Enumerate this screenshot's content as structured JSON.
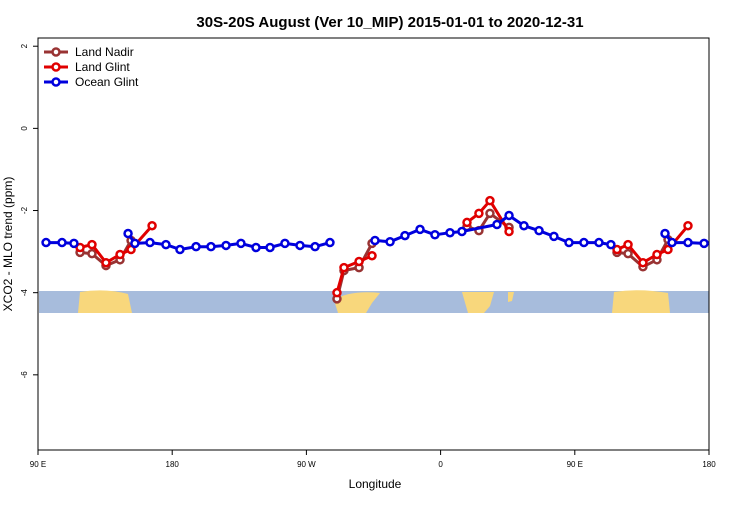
{
  "chart_data": {
    "type": "line",
    "title": "30S-20S August (Ver 10_MIP)   2015-01-01 to 2020-12-31",
    "x_label": "Longitude",
    "y_label": "XCO2 - MLO trend (ppm)",
    "xlim": [
      90,
      540
    ],
    "ylim": [
      -7.83,
      2.2
    ],
    "xticks": [
      {
        "value": 90,
        "label": "90 E"
      },
      {
        "value": 180,
        "label": "180"
      },
      {
        "value": 270,
        "label": "90 W"
      },
      {
        "value": 360,
        "label": "0"
      },
      {
        "value": 450,
        "label": "90 E"
      },
      {
        "value": 540,
        "label": "180"
      }
    ],
    "yticks": [
      2,
      0,
      -2,
      -4,
      -6
    ],
    "legend": "top-left",
    "series": [
      {
        "name": "Land Nadir",
        "color": "#993333",
        "x": [
          118.2,
          126.2,
          135.6,
          145.0,
          152.4,
          null,
          290.5,
          295.2,
          305.3,
          314.0,
          null,
          377.7,
          385.7,
          393.1,
          405.9,
          null,
          478.3,
          485.7,
          495.7,
          505.1,
          512.5
        ],
        "values": [
          -3.02,
          -3.05,
          -3.34,
          -3.2,
          -2.73,
          null,
          -4.15,
          -3.46,
          -3.39,
          -2.8,
          null,
          -2.39,
          -2.49,
          -2.07,
          -2.41,
          null,
          -3.02,
          -3.05,
          -3.37,
          -3.2,
          -2.71
        ]
      },
      {
        "name": "Land Glint",
        "color": "#e00000",
        "x": [
          118.2,
          126.2,
          135.6,
          145.0,
          152.4,
          166.5,
          null,
          290.5,
          295.2,
          305.3,
          314.0,
          null,
          377.7,
          385.7,
          393.1,
          405.9,
          null,
          478.3,
          485.7,
          495.7,
          505.1,
          512.5,
          525.9
        ],
        "values": [
          -2.9,
          -2.83,
          -3.27,
          -3.07,
          -2.95,
          -2.37,
          null,
          -4.0,
          -3.39,
          -3.24,
          -3.1,
          null,
          -2.29,
          -2.07,
          -1.76,
          -2.51,
          null,
          -2.95,
          -2.83,
          -3.27,
          -3.07,
          -2.95,
          -2.37
        ]
      },
      {
        "name": "Ocean Glint",
        "color": "#0000dd",
        "x": [
          95.4,
          106.1,
          114.1,
          null,
          150.4,
          155.0,
          165.1,
          175.8,
          185.2,
          196.0,
          206.0,
          216.1,
          226.1,
          236.2,
          245.6,
          255.6,
          265.7,
          275.8,
          285.8,
          null,
          316.0,
          326.1,
          336.1,
          346.2,
          356.2,
          366.3,
          374.3,
          397.8,
          405.9,
          415.9,
          426.0,
          436.0,
          446.1,
          456.1,
          466.2,
          474.2,
          null,
          510.5,
          515.2,
          525.9,
          536.7
        ],
        "values": [
          -2.78,
          -2.78,
          -2.8,
          null,
          -2.56,
          -2.8,
          -2.78,
          -2.83,
          -2.95,
          -2.88,
          -2.88,
          -2.85,
          -2.8,
          -2.9,
          -2.9,
          -2.8,
          -2.85,
          -2.88,
          -2.78,
          null,
          -2.73,
          -2.76,
          -2.61,
          -2.46,
          -2.59,
          -2.54,
          -2.51,
          -2.34,
          -2.12,
          -2.37,
          -2.49,
          -2.63,
          -2.78,
          -2.78,
          -2.78,
          -2.83,
          null,
          -2.56,
          -2.78,
          -2.78,
          -2.8
        ]
      }
    ]
  }
}
